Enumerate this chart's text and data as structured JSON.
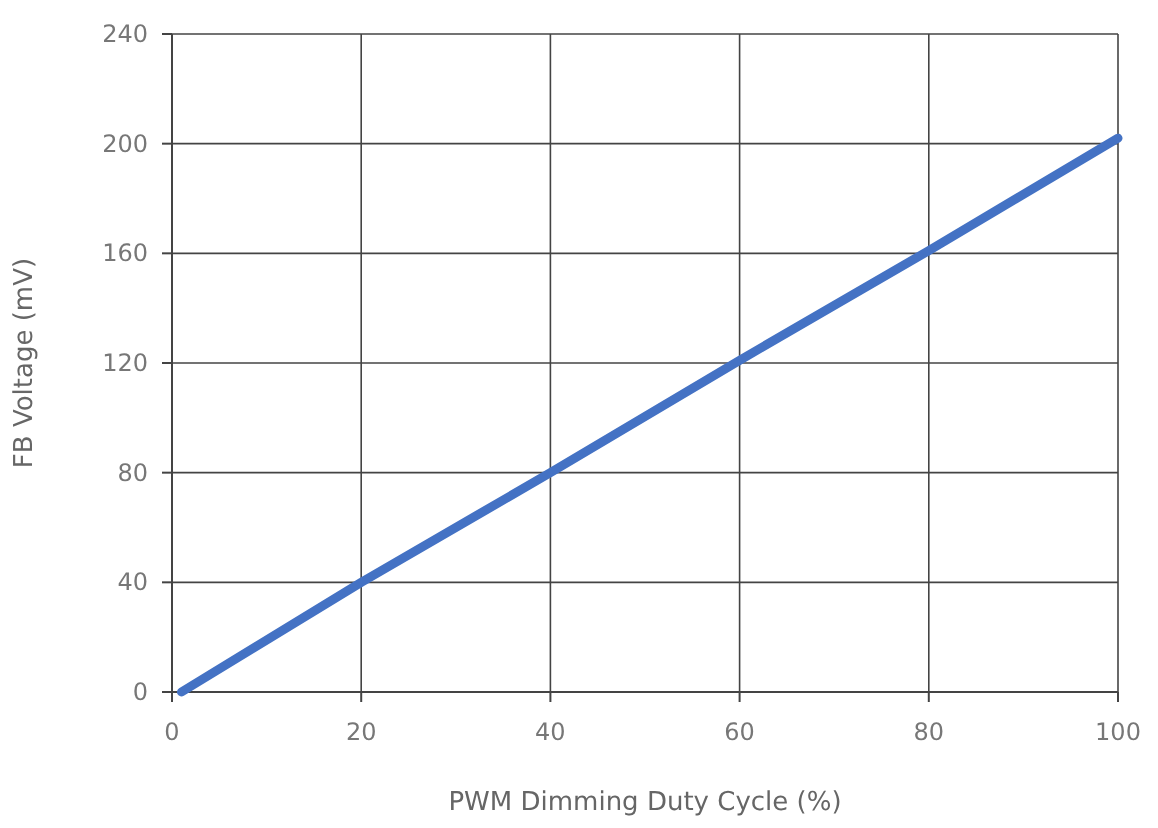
{
  "chart_data": {
    "type": "line",
    "xlabel": "PWM Dimming Duty Cycle (%)",
    "ylabel": "FB Voltage (mV)",
    "x": [
      1,
      20,
      40,
      60,
      80,
      100
    ],
    "series": [
      {
        "color": "#4472c4",
        "values": [
          0,
          40,
          80,
          121,
          161,
          202
        ]
      }
    ],
    "xlim": [
      0,
      100
    ],
    "xticks": [
      0,
      20,
      40,
      60,
      80,
      100
    ],
    "ylim": [
      0,
      240
    ],
    "yticks": [
      0,
      40,
      80,
      120,
      160,
      200,
      240
    ],
    "grid": true,
    "marker": "none",
    "line_style": "solid"
  }
}
